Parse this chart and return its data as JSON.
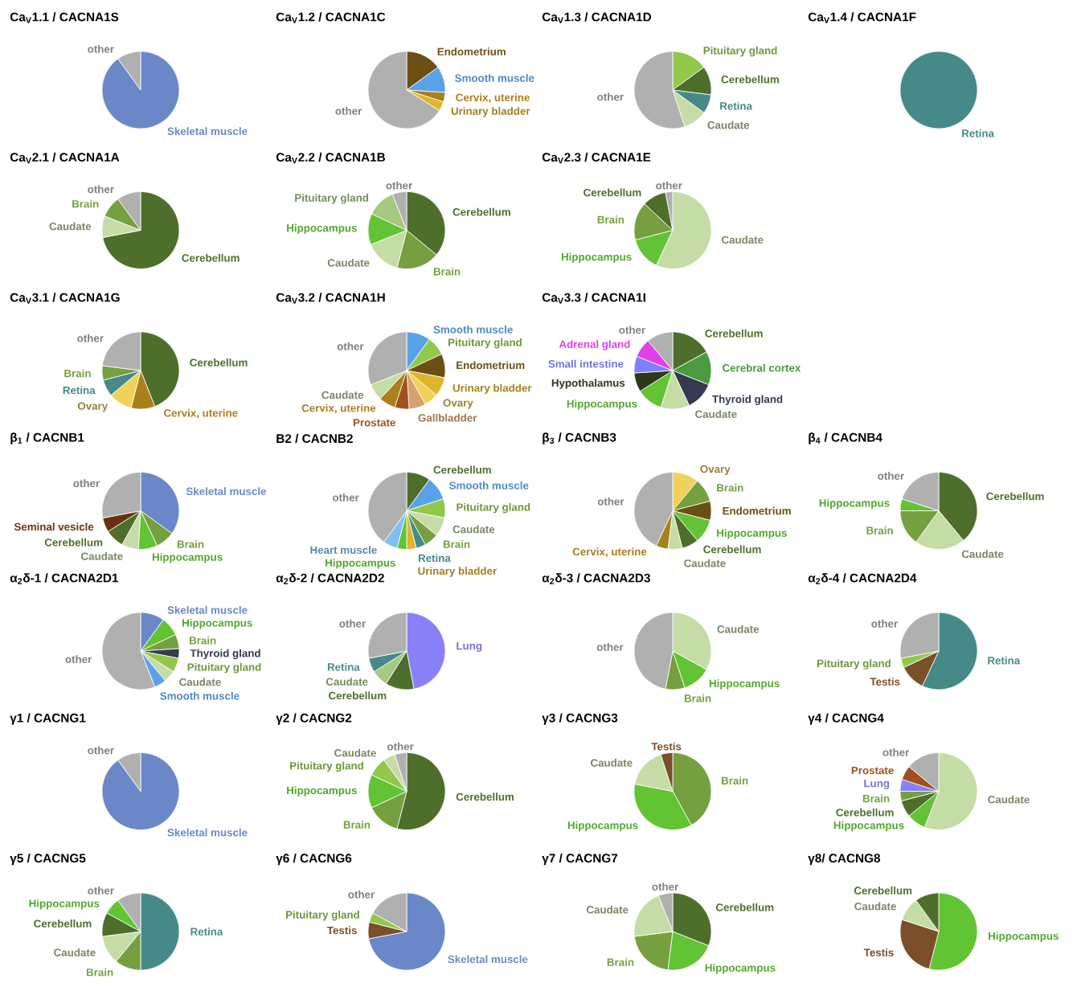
{
  "chart_data": [
    {
      "type": "pie",
      "title": "Ca$_{V}$1.1 / CACNA1S",
      "categories": [
        "Skeletal muscle",
        "other"
      ],
      "values": [
        90,
        10
      ],
      "colors": [
        "#6a87c8",
        "#b0b0b0"
      ]
    },
    {
      "type": "pie",
      "title": "Ca$_{V}$1.2 / CACNA1C",
      "categories": [
        "Endometrium",
        "Smooth muscle",
        "Cervix, uterine",
        "Urinary bladder",
        "other"
      ],
      "values": [
        15,
        11,
        4,
        4,
        66
      ],
      "colors": [
        "#6b4f14",
        "#5aa2e8",
        "#a8801c",
        "#e0b52c",
        "#b0b0b0"
      ]
    },
    {
      "type": "pie",
      "title": "Ca$_{V}$1.3 / CACNA1D",
      "categories": [
        "Pituitary gland",
        "Cerebellum",
        "Retina",
        "Caudate",
        "other"
      ],
      "values": [
        15,
        12,
        8,
        10,
        55
      ],
      "colors": [
        "#92c84a",
        "#4e6e2c",
        "#458a88",
        "#c5dca6",
        "#b0b0b0"
      ]
    },
    {
      "type": "pie",
      "title": "Ca$_{V}$1.4 / CACNA1F",
      "categories": [
        "Retina"
      ],
      "values": [
        100
      ],
      "colors": [
        "#458a88"
      ]
    },
    {
      "type": "pie",
      "title": "Ca$_{V}$2.1 / CACNA1A",
      "categories": [
        "Cerebellum",
        "Caudate",
        "Brain",
        "other"
      ],
      "values": [
        72,
        9,
        9,
        10
      ],
      "colors": [
        "#4e6e2c",
        "#c5dca6",
        "#76a040",
        "#b0b0b0"
      ]
    },
    {
      "type": "pie",
      "title": "Ca$_{V}$2.2 / CACNA1B",
      "categories": [
        "Cerebellum",
        "Brain",
        "Caudate",
        "Hippocampus",
        "Pituitary gland",
        "other"
      ],
      "values": [
        36,
        18,
        15,
        13,
        12,
        6
      ],
      "colors": [
        "#4e6e2c",
        "#76a040",
        "#c5dca6",
        "#62c334",
        "#a6c880",
        "#b0b0b0"
      ]
    },
    {
      "type": "pie",
      "title": "Ca$_{V}$2.3 / CACNA1E",
      "categories": [
        "Caudate",
        "Hippocampus",
        "Brain",
        "Cerebellum",
        "other"
      ],
      "values": [
        57,
        14,
        16,
        10,
        3
      ],
      "colors": [
        "#c5dca6",
        "#62c334",
        "#76a040",
        "#4e6e2c",
        "#b0b0b0"
      ]
    },
    {
      "type": "pie",
      "title": "Ca$_{V}$3.1 / CACNA1G",
      "categories": [
        "Cerebellum",
        "Cervix, uterine",
        "Ovary",
        "Retina",
        "Brain",
        "other"
      ],
      "values": [
        44,
        10,
        10,
        7,
        6,
        23
      ],
      "colors": [
        "#4e6e2c",
        "#a8801c",
        "#f0d25a",
        "#458a88",
        "#76a040",
        "#b0b0b0"
      ]
    },
    {
      "type": "pie",
      "title": "Ca$_{V}$3.2 / CACNA1H",
      "categories": [
        "Smooth muscle",
        "Pituitary gland",
        "Endometrium",
        "Urinary bladder",
        "Ovary",
        "Gallbladder",
        "Prostate",
        "Cervix, uterine",
        "Caudate",
        "other"
      ],
      "values": [
        10,
        8,
        10,
        8,
        6,
        7,
        6,
        7,
        7,
        31
      ],
      "colors": [
        "#5aa2e8",
        "#92c84a",
        "#6b4f14",
        "#e0b52c",
        "#f0d25a",
        "#d8a070",
        "#a0501e",
        "#a8801c",
        "#c5dca6",
        "#b0b0b0"
      ]
    },
    {
      "type": "pie",
      "title": "Ca$_{V}$3.3 / CACNA1I",
      "categories": [
        "Cerebellum",
        "Cerebral cortex",
        "Thyroid gland",
        "Caudate",
        "Hippocampus",
        "Hypothalamus",
        "Small intestine",
        "Adrenal gland",
        "other"
      ],
      "values": [
        17,
        14,
        12,
        12,
        11,
        8,
        7,
        8,
        11
      ],
      "colors": [
        "#4e6e2c",
        "#4a9a40",
        "#343a50",
        "#c5dca6",
        "#62c334",
        "#2c3a1c",
        "#8080f8",
        "#e040e8",
        "#b0b0b0"
      ]
    },
    {
      "type": "pie",
      "title": "β$_{1}$ / CACNB1",
      "categories": [
        "Skeletal muscle",
        "Brain",
        "Hippocampus",
        "Caudate",
        "Cerebellum",
        "Seminal vesicle",
        "other"
      ],
      "values": [
        35,
        8,
        8,
        7,
        8,
        6,
        28
      ],
      "colors": [
        "#6a87c8",
        "#76a040",
        "#62c334",
        "#c5dca6",
        "#4e6e2c",
        "#6a3010",
        "#b0b0b0"
      ]
    },
    {
      "type": "pie",
      "title": "B2 / CACNB2",
      "categories": [
        "Cerebellum",
        "Smooth muscle",
        "Pituitary gland",
        "Caudate",
        "Brain",
        "Retina",
        "Urinary bladder",
        "Hippocampus",
        "Heart muscle",
        "other"
      ],
      "values": [
        10,
        10,
        8,
        8,
        6,
        4,
        4,
        4,
        6,
        40
      ],
      "colors": [
        "#4e6e2c",
        "#5aa2e8",
        "#92c84a",
        "#c5dca6",
        "#76a040",
        "#458a88",
        "#e0b52c",
        "#62c334",
        "#80c0f0",
        "#b0b0b0"
      ]
    },
    {
      "type": "pie",
      "title": "β$_{3}$ / CACNB3",
      "categories": [
        "Ovary",
        "Brain",
        "Endometrium",
        "Hippocampus",
        "Cerebellum",
        "Caudate",
        "Cervix, uterine",
        "other"
      ],
      "values": [
        11,
        10,
        8,
        10,
        7,
        6,
        5,
        43
      ],
      "colors": [
        "#f0d25a",
        "#76a040",
        "#6b4f14",
        "#62c334",
        "#4e6e2c",
        "#c5dca6",
        "#a8801c",
        "#b0b0b0"
      ]
    },
    {
      "type": "pie",
      "title": "β$_{4}$ / CACNB4",
      "categories": [
        "Cerebellum",
        "Caudate",
        "Brain",
        "Hippocampus",
        "other"
      ],
      "values": [
        39,
        21,
        15,
        5,
        20
      ],
      "colors": [
        "#4e6e2c",
        "#c5dca6",
        "#76a040",
        "#62c334",
        "#b0b0b0"
      ]
    },
    {
      "type": "pie",
      "title": "α$_{2}$δ-1 / CACNA2D1",
      "categories": [
        "Skeletal muscle",
        "Hippocampus",
        "Brain",
        "Thyroid gland",
        "Pituitary gland",
        "Caudate",
        "Smooth muscle",
        "other"
      ],
      "values": [
        10,
        8,
        6,
        4,
        6,
        5,
        5,
        56
      ],
      "colors": [
        "#6a87c8",
        "#62c334",
        "#76a040",
        "#343a50",
        "#92c84a",
        "#c5dca6",
        "#5aa2e8",
        "#b0b0b0"
      ]
    },
    {
      "type": "pie",
      "title": "α$_{2}$δ-2 / CACNA2D2",
      "categories": [
        "Lung",
        "Cerebellum",
        "Caudate",
        "Retina",
        "other"
      ],
      "values": [
        47,
        12,
        7,
        6,
        28
      ],
      "colors": [
        "#8a80f8",
        "#4e6e2c",
        "#a6c880",
        "#458a88",
        "#b0b0b0"
      ]
    },
    {
      "type": "pie",
      "title": "α$_{2}$δ-3 / CACNA2D3",
      "categories": [
        "Caudate",
        "Hippocampus",
        "Brain",
        "other"
      ],
      "values": [
        33,
        12,
        8,
        47
      ],
      "colors": [
        "#c5dca6",
        "#62c334",
        "#76a040",
        "#b0b0b0"
      ]
    },
    {
      "type": "pie",
      "title": "α$_{2}$δ-4 / CACNA2D4",
      "categories": [
        "Retina",
        "Testis",
        "Pituitary gland",
        "other"
      ],
      "values": [
        57,
        11,
        4,
        28
      ],
      "colors": [
        "#458a88",
        "#7a4f2a",
        "#92c84a",
        "#b0b0b0"
      ]
    },
    {
      "type": "pie",
      "title": "γ1 / CACNG1",
      "categories": [
        "Skeletal muscle",
        "other"
      ],
      "values": [
        90,
        10
      ],
      "colors": [
        "#6a87c8",
        "#b0b0b0"
      ]
    },
    {
      "type": "pie",
      "title": "γ2 / CACNG2",
      "categories": [
        "Cerebellum",
        "Brain",
        "Hippocampus",
        "Pituitary gland",
        "Caudate",
        "other"
      ],
      "values": [
        54,
        14,
        14,
        8,
        5,
        5
      ],
      "colors": [
        "#4e6e2c",
        "#76a040",
        "#62c334",
        "#92c84a",
        "#c5dca6",
        "#b0b0b0"
      ]
    },
    {
      "type": "pie",
      "title": "γ3 / CACNG3",
      "categories": [
        "Brain",
        "Hippocampus",
        "Caudate",
        "Testis"
      ],
      "values": [
        42,
        36,
        17,
        5
      ],
      "colors": [
        "#76a040",
        "#62c334",
        "#c5dca6",
        "#7a4f2a"
      ]
    },
    {
      "type": "pie",
      "title": "γ4 / CACNG4",
      "categories": [
        "Caudate",
        "Hippocampus",
        "Cerebellum",
        "Brain",
        "Lung",
        "Prostate",
        "other"
      ],
      "values": [
        56,
        8,
        7,
        4,
        5,
        6,
        14
      ],
      "colors": [
        "#c5dca6",
        "#62c334",
        "#4e6e2c",
        "#76a040",
        "#8a80f8",
        "#a0501e",
        "#b0b0b0"
      ]
    },
    {
      "type": "pie",
      "title": "γ5 / CACNG5",
      "categories": [
        "Retina",
        "Brain",
        "Caudate",
        "Cerebellum",
        "Hippocampus",
        "other"
      ],
      "values": [
        50,
        11,
        12,
        10,
        7,
        10
      ],
      "colors": [
        "#458a88",
        "#76a040",
        "#c5dca6",
        "#4e6e2c",
        "#62c334",
        "#b0b0b0"
      ]
    },
    {
      "type": "pie",
      "title": "γ6 / CACNG6",
      "categories": [
        "Skeletal muscle",
        "Testis",
        "Pituitary gland",
        "other"
      ],
      "values": [
        72,
        7,
        4,
        17
      ],
      "colors": [
        "#6a87c8",
        "#7a4f2a",
        "#92c84a",
        "#b0b0b0"
      ]
    },
    {
      "type": "pie",
      "title": "γ7 / CACNG7",
      "categories": [
        "Cerebellum",
        "Hippocampus",
        "Brain",
        "Caudate",
        "other"
      ],
      "values": [
        31,
        21,
        21,
        21,
        6
      ],
      "colors": [
        "#4e6e2c",
        "#62c334",
        "#76a040",
        "#c5dca6",
        "#b0b0b0"
      ]
    },
    {
      "type": "pie",
      "title": "γ8/ CACNG8",
      "categories": [
        "Hippocampus",
        "Testis",
        "Caudate",
        "Cerebellum"
      ],
      "values": [
        54,
        26,
        10,
        10
      ],
      "colors": [
        "#62c334",
        "#7a4f2a",
        "#c5dca6",
        "#4e6e2c"
      ]
    }
  ]
}
